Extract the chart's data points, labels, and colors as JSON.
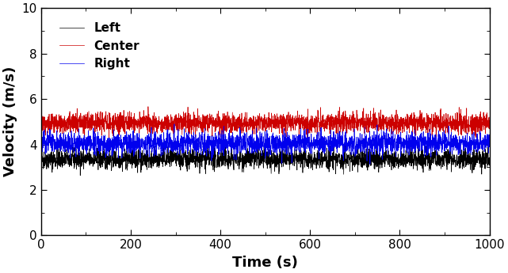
{
  "title": "",
  "xlabel": "Time (s)",
  "ylabel": "Velocity (m/s)",
  "xlim": [
    0,
    1000
  ],
  "ylim": [
    0,
    10
  ],
  "xticks": [
    0,
    200,
    400,
    600,
    800,
    1000
  ],
  "yticks": [
    0,
    2,
    4,
    6,
    8,
    10
  ],
  "series": [
    {
      "label": "Left",
      "color": "#000000",
      "mean": 3.35,
      "std": 0.22,
      "lw": 0.5
    },
    {
      "label": "Center",
      "color": "#cc0000",
      "mean": 4.95,
      "std": 0.22,
      "lw": 0.5
    },
    {
      "label": "Right",
      "color": "#0000ee",
      "mean": 4.05,
      "std": 0.24,
      "lw": 0.5
    }
  ],
  "n_points": 3000,
  "legend_fontsize": 11,
  "axis_label_fontsize": 13,
  "tick_fontsize": 11,
  "figsize": [
    6.41,
    3.45
  ],
  "dpi": 100
}
